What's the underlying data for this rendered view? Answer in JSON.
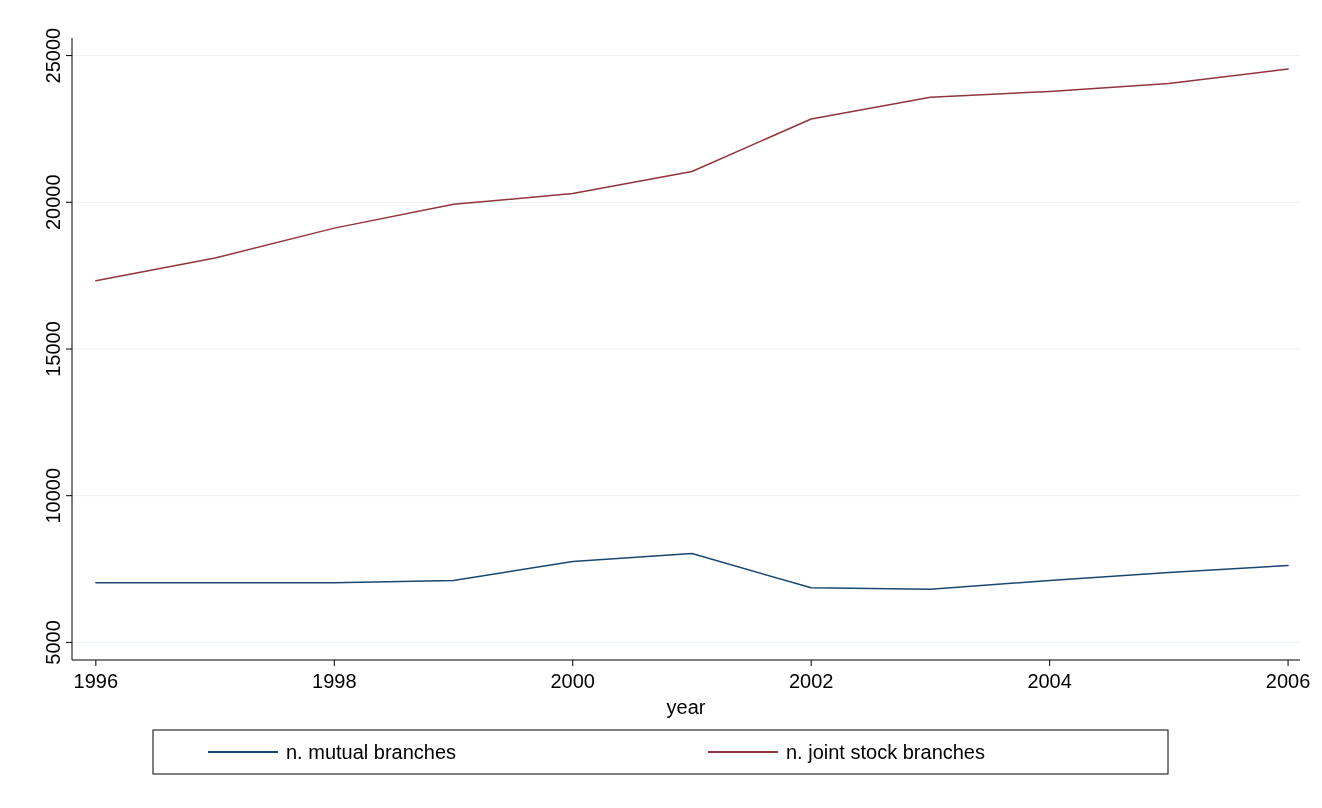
{
  "chart_data": {
    "type": "line",
    "xlabel": "year",
    "x": [
      1996,
      1997,
      1998,
      1999,
      2000,
      2001,
      2002,
      2003,
      2004,
      2005,
      2006
    ],
    "series": [
      {
        "name": "n. mutual branches",
        "color": "#1a476f",
        "values": [
          7030,
          7030,
          7030,
          7110,
          7760,
          8030,
          6860,
          6810,
          7110,
          7380,
          7620
        ]
      },
      {
        "name": "n. joint stock branches",
        "color": "#90353b",
        "values": [
          17330,
          18100,
          19120,
          19930,
          20300,
          21050,
          22840,
          23580,
          23780,
          24050,
          24540
        ]
      }
    ],
    "xlim": [
      1995.8,
      2006.1
    ],
    "xticks": [
      1996,
      1998,
      2000,
      2002,
      2004,
      2006
    ],
    "ylim": [
      4400,
      25600
    ],
    "yticks": [
      5000,
      10000,
      15000,
      20000,
      25000
    ],
    "grid": "y",
    "legend": "bottom",
    "line_style": "solid"
  }
}
